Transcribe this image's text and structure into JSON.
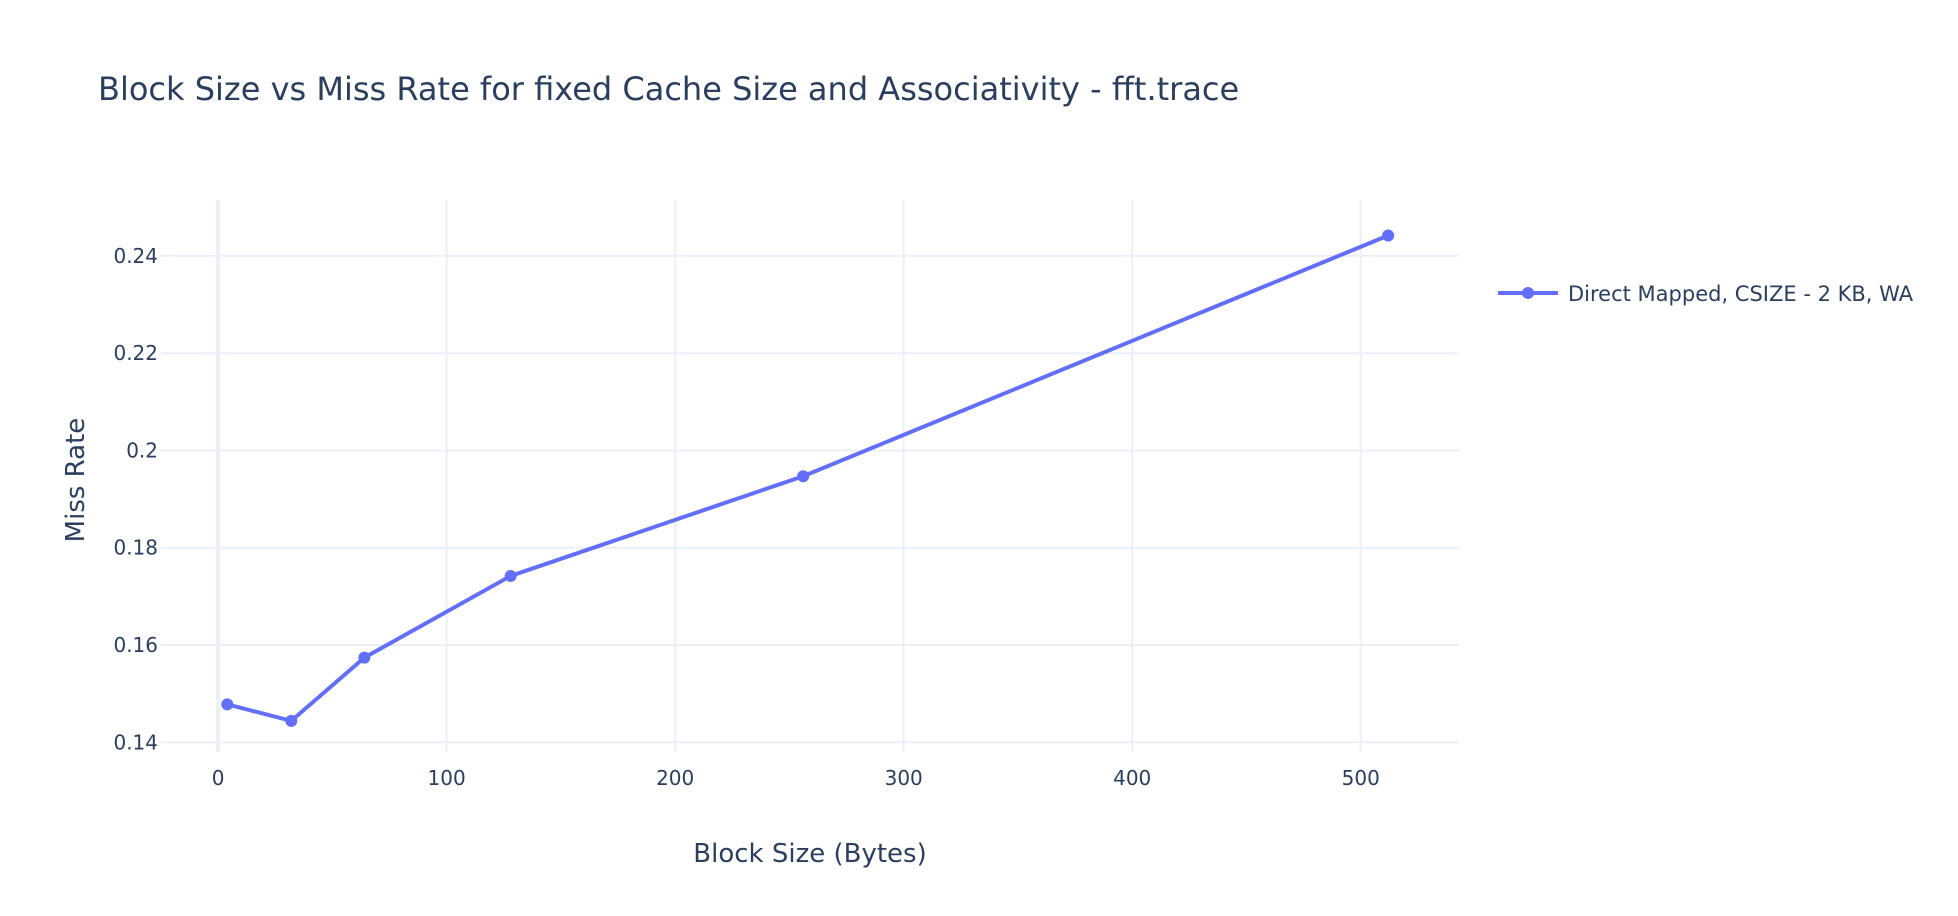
{
  "chart_data": {
    "type": "line",
    "title": "Block Size vs Miss Rate for fixed Cache Size and Associativity - fft.trace",
    "xlabel": "Block Size (Bytes)",
    "ylabel": "Miss Rate",
    "xlim": [
      -25,
      543
    ],
    "ylim": [
      0.138,
      0.2515
    ],
    "xticks": [
      0,
      100,
      200,
      300,
      400,
      500
    ],
    "xtick_labels": [
      "0",
      "100",
      "200",
      "300",
      "400",
      "500"
    ],
    "yticks": [
      0.14,
      0.16,
      0.18,
      0.2,
      0.22,
      0.24
    ],
    "ytick_labels": [
      "0.14",
      "0.16",
      "0.18",
      "0.2",
      "0.22",
      "0.24"
    ],
    "grid": true,
    "legend_position": "right",
    "series": [
      {
        "name": "Direct Mapped, CSIZE - 2 KB, WA",
        "color": "#636efa",
        "x": [
          4,
          32,
          64,
          128,
          256,
          512
        ],
        "y": [
          0.1478,
          0.1444,
          0.1574,
          0.1742,
          0.1947,
          0.2442
        ]
      }
    ]
  }
}
